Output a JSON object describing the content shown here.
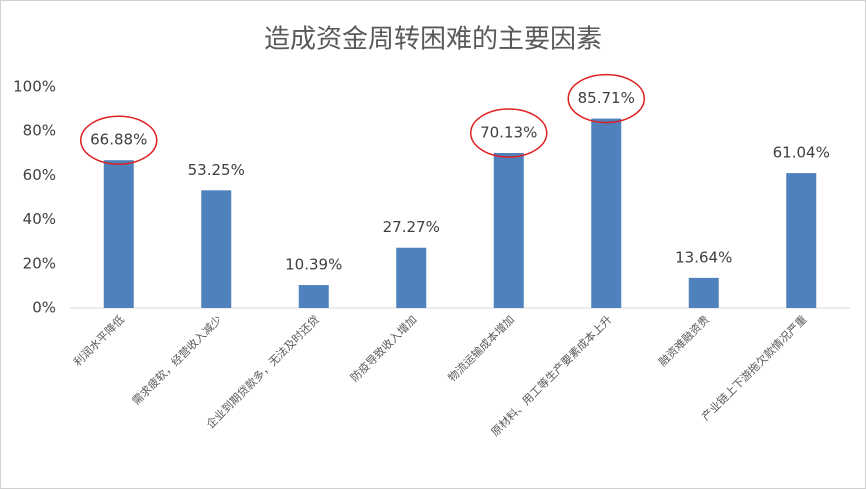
{
  "chart_data": {
    "type": "bar",
    "title": "造成资金周转困难的主要因素",
    "categories": [
      "利润水平降低",
      "需求疲软，经营收入减少",
      "企业到期贷款多，无法及时还贷",
      "防疫导致收入增加",
      "物流运输成本增加",
      "原材料、用工等生产要素成本上升",
      "融资难融资贵",
      "产业链上下游拖欠款情况严重"
    ],
    "values": [
      66.88,
      53.25,
      10.39,
      27.27,
      70.13,
      85.71,
      13.64,
      61.04
    ],
    "value_labels": [
      "66.88%",
      "53.25%",
      "10.39%",
      "27.27%",
      "70.13%",
      "85.71%",
      "13.64%",
      "61.04%"
    ],
    "color": "#4f81bd",
    "ylim": [
      0,
      100
    ],
    "yticks": [
      {
        "value": 0,
        "label": "0%"
      },
      {
        "value": 20,
        "label": "20%"
      },
      {
        "value": 40,
        "label": "40%"
      },
      {
        "value": 60,
        "label": "60%"
      },
      {
        "value": 80,
        "label": "80%"
      },
      {
        "value": 100,
        "label": "100%"
      }
    ],
    "grid": false
  }
}
